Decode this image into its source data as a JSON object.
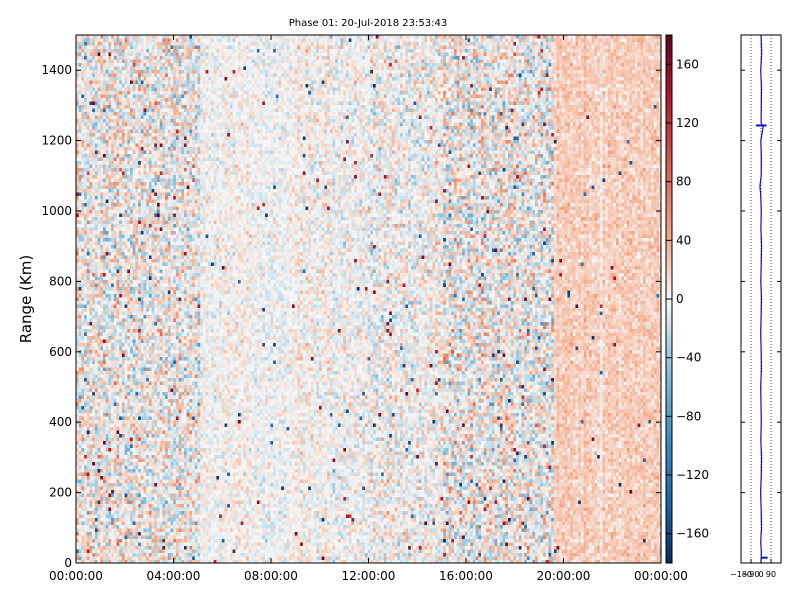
{
  "chart_data": [
    {
      "type": "heatmap",
      "title": "Phase 01: 20-Jul-2018 23:53:43",
      "xlabel": "",
      "ylabel": "Range (Km)",
      "x_ticks": [
        "00:00:00",
        "04:00:00",
        "08:00:00",
        "12:00:00",
        "16:00:00",
        "20:00:00",
        "00:00:00"
      ],
      "x_range_hours": [
        0,
        24
      ],
      "y_ticks": [
        0,
        200,
        400,
        600,
        800,
        1000,
        1200,
        1400
      ],
      "ylim": [
        0,
        1500
      ],
      "colorbar": {
        "ticks": [
          160,
          120,
          80,
          40,
          0,
          -40,
          -80,
          -120,
          -160
        ],
        "range": [
          -180,
          180
        ],
        "colormap": "RdBu_r",
        "color_low": "#053061",
        "color_mid": "#f7f7f7",
        "color_high": "#67001f"
      },
      "notes_visible": "phase noise around 0 degrees, denser scatter 00–05h and 15–19h, slight positive band 19–24h"
    },
    {
      "type": "line",
      "title": "",
      "x_ticks": [
        "-180",
        "-90",
        "0",
        "90"
      ],
      "xlim": [
        -180,
        180
      ],
      "ylim": [
        0,
        1500
      ],
      "grid": "vertical dotted",
      "series": [
        {
          "y_km": [
            0,
            30,
            60,
            100,
            150,
            200,
            250,
            300,
            350,
            400,
            450,
            500,
            550,
            600,
            650,
            700,
            750,
            800,
            850,
            900,
            950,
            1000,
            1050,
            1070,
            1100,
            1150,
            1200,
            1240,
            1250,
            1300,
            1350,
            1400,
            1450,
            1500
          ],
          "phase_deg": [
            0,
            8,
            -5,
            10,
            3,
            -8,
            5,
            10,
            -3,
            6,
            0,
            -6,
            8,
            4,
            -5,
            2,
            9,
            -4,
            3,
            10,
            -2,
            5,
            -7,
            -20,
            4,
            7,
            -3,
            40,
            2,
            6,
            9,
            -5,
            12,
            0
          ]
        }
      ],
      "outliers": [
        {
          "y_km": 1243,
          "from_deg": -45,
          "to_deg": 50
        },
        {
          "y_km": 15,
          "from_deg": 0,
          "to_deg": 60
        }
      ]
    }
  ],
  "colors": {
    "line": "#1010c0",
    "frame": "#000000"
  }
}
